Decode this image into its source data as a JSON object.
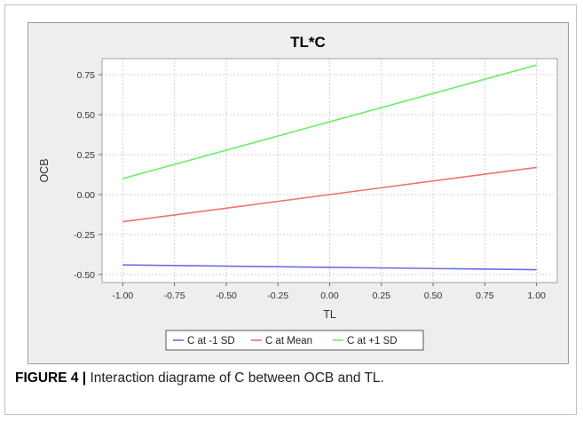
{
  "caption": {
    "label": "FIGURE 4",
    "separator": " | ",
    "text": "Interaction diagrame of C between OCB and TL."
  },
  "chart_data": {
    "type": "line",
    "title": "TL*C",
    "xlabel": "TL",
    "ylabel": "OCB",
    "xlim": [
      -1.1,
      1.1
    ],
    "ylim": [
      -0.55,
      0.85
    ],
    "xticks": [
      -1.0,
      -0.75,
      -0.5,
      -0.25,
      0.0,
      0.25,
      0.5,
      0.75,
      1.0
    ],
    "xtick_labels": [
      "-1.00",
      "-0.75",
      "-0.50",
      "-0.25",
      "0.00",
      "0.25",
      "0.50",
      "0.75",
      "1.00"
    ],
    "yticks": [
      -0.5,
      -0.25,
      0.0,
      0.25,
      0.5,
      0.75
    ],
    "ytick_labels": [
      "-0.50",
      "-0.25",
      "0.00",
      "0.25",
      "0.50",
      "0.75"
    ],
    "grid": true,
    "legend_position": "bottom-center",
    "x": [
      -1.0,
      1.0
    ],
    "series": [
      {
        "name": "C at -1 SD",
        "color": "#6b6bea",
        "values": [
          -0.44,
          -0.47
        ]
      },
      {
        "name": "C at Mean",
        "color": "#f07070",
        "values": [
          -0.17,
          0.17
        ]
      },
      {
        "name": "C at +1 SD",
        "color": "#66ee66",
        "values": [
          0.1,
          0.81
        ]
      }
    ],
    "plot_background": "#ffffff",
    "panel_background": "#eeeeee"
  }
}
